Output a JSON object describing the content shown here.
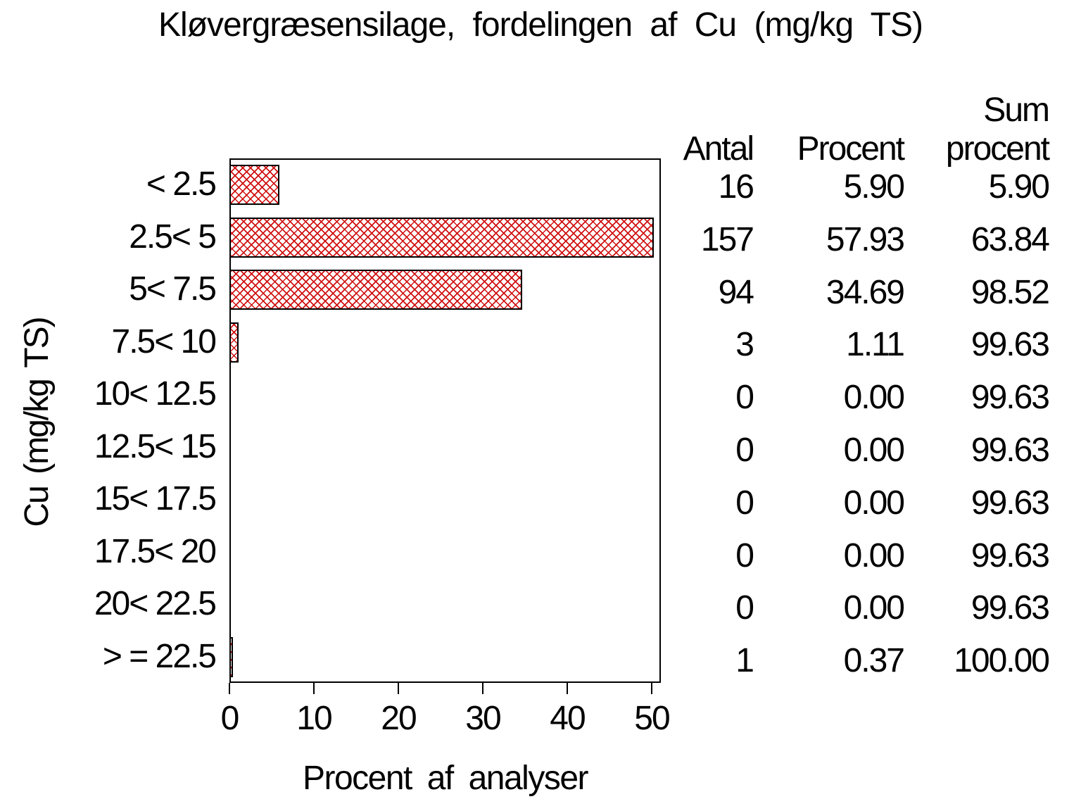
{
  "chart_data": {
    "type": "bar",
    "orientation": "horizontal",
    "title": "Kløvergræsensilage, fordelingen af Cu (mg/kg TS)",
    "xlabel": "Procent af analyser",
    "ylabel": "Cu (mg/kg TS)",
    "categories": [
      "< 2.5",
      "2.5< 5",
      "5< 7.5",
      "7.5< 10",
      "10< 12.5",
      "12.5< 15",
      "15< 17.5",
      "17.5< 20",
      "20< 22.5",
      "> = 22.5"
    ],
    "values": [
      5.9,
      57.93,
      34.69,
      1.11,
      0.0,
      0.0,
      0.0,
      0.0,
      0.0,
      0.37
    ],
    "x_tick_labels": [
      "0",
      "10",
      "20",
      "30",
      "40",
      "50"
    ],
    "xlim": [
      0,
      50
    ],
    "grid": false,
    "legend": false,
    "bar_style": {
      "fill_pattern": "crosshatch",
      "pattern_color": "#cf1110",
      "border_color": "#000000",
      "fill_background": "#ffffff"
    }
  },
  "table": {
    "headers": {
      "antal": "Antal",
      "procent": "Procent",
      "sum_line1": "Sum",
      "sum_line2": "procent"
    },
    "rows": [
      [
        "16",
        "5.90",
        "5.90"
      ],
      [
        "157",
        "57.93",
        "63.84"
      ],
      [
        "94",
        "34.69",
        "98.52"
      ],
      [
        "3",
        "1.11",
        "99.63"
      ],
      [
        "0",
        "0.00",
        "99.63"
      ],
      [
        "0",
        "0.00",
        "99.63"
      ],
      [
        "0",
        "0.00",
        "99.63"
      ],
      [
        "0",
        "0.00",
        "99.63"
      ],
      [
        "0",
        "0.00",
        "99.63"
      ],
      [
        "1",
        "0.37",
        "100.00"
      ]
    ]
  },
  "colors": {
    "text": "#000000",
    "axis": "#000000",
    "background": "#ffffff",
    "bar_pattern": "#cf1110",
    "bar_border": "#000000"
  }
}
